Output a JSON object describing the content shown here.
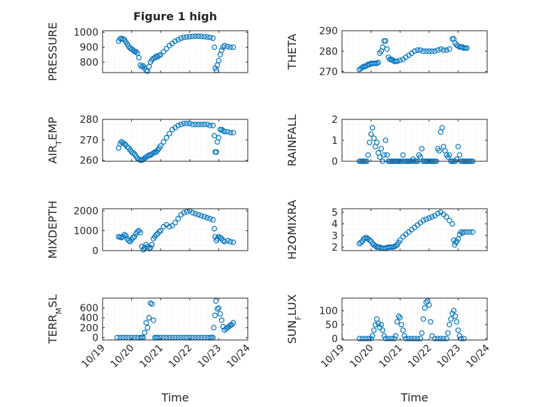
{
  "figure": {
    "title": "Figure 1 high"
  },
  "x_axis": {
    "label": "Time",
    "ticks": [
      "10/19",
      "10/20",
      "10/21",
      "10/22",
      "10/23",
      "10/24"
    ]
  },
  "colors": {
    "marker": "#0072bd",
    "axis": "#262626",
    "grid": "#dcdcdc"
  },
  "chart_data": [
    {
      "type": "scatter",
      "ylabel": "PRESSURE",
      "xlim": [
        0,
        5
      ],
      "ylim": [
        730,
        1010
      ],
      "yticks": [
        800,
        900,
        1000
      ],
      "x": [
        0.55,
        0.6,
        0.65,
        0.7,
        0.75,
        0.8,
        0.85,
        0.9,
        0.95,
        1.0,
        1.05,
        1.1,
        1.15,
        1.2,
        1.25,
        1.3,
        1.35,
        1.4,
        1.45,
        1.5,
        1.55,
        1.6,
        1.65,
        1.7,
        1.75,
        1.8,
        1.85,
        1.9,
        1.95,
        2.0,
        2.1,
        2.2,
        2.3,
        2.4,
        2.5,
        2.6,
        2.7,
        2.8,
        2.9,
        3.0,
        3.1,
        3.2,
        3.3,
        3.4,
        3.5,
        3.6,
        3.7,
        3.8,
        3.85,
        3.88,
        3.92,
        3.95,
        4.0,
        4.05,
        4.1,
        4.15,
        4.2,
        4.3,
        4.4,
        4.5
      ],
      "y": [
        940,
        955,
        958,
        955,
        950,
        935,
        920,
        905,
        893,
        888,
        880,
        870,
        870,
        860,
        830,
        780,
        770,
        775,
        760,
        745,
        740,
        770,
        800,
        815,
        825,
        830,
        840,
        835,
        845,
        850,
        870,
        890,
        910,
        925,
        940,
        950,
        960,
        965,
        968,
        970,
        972,
        973,
        973,
        972,
        970,
        968,
        965,
        960,
        900,
        760,
        745,
        780,
        810,
        850,
        880,
        900,
        910,
        905,
        900,
        900
      ]
    },
    {
      "type": "scatter",
      "ylabel": "THETA",
      "xlim": [
        0,
        5
      ],
      "ylim": [
        269.5,
        290
      ],
      "yticks": [
        270,
        280,
        290
      ],
      "x": [
        0.6,
        0.65,
        0.7,
        0.75,
        0.8,
        0.85,
        0.9,
        0.95,
        1.0,
        1.05,
        1.1,
        1.15,
        1.2,
        1.25,
        1.3,
        1.35,
        1.4,
        1.45,
        1.5,
        1.55,
        1.6,
        1.65,
        1.7,
        1.75,
        1.8,
        1.85,
        1.9,
        2.0,
        2.1,
        2.2,
        2.3,
        2.4,
        2.5,
        2.6,
        2.7,
        2.8,
        2.9,
        3.0,
        3.1,
        3.2,
        3.3,
        3.4,
        3.5,
        3.6,
        3.7,
        3.8,
        3.85,
        3.9,
        3.95,
        4.0,
        4.05,
        4.1,
        4.15,
        4.2,
        4.25,
        4.3
      ],
      "y": [
        271,
        271.5,
        272,
        272.5,
        272.5,
        273,
        273.5,
        273.5,
        274,
        274,
        274,
        274,
        274,
        274.5,
        279,
        280,
        282,
        285,
        285,
        281,
        277,
        276,
        276,
        275.5,
        275,
        275,
        275,
        275.5,
        276,
        277,
        278,
        279,
        280,
        280.5,
        280.5,
        280,
        280,
        280,
        280,
        280,
        280.5,
        281,
        280.5,
        280.5,
        281,
        286,
        286,
        284,
        283,
        282.5,
        282,
        282,
        282,
        281.5,
        281.5,
        281.5
      ]
    },
    {
      "type": "scatter",
      "ylabel": "AIR_TEMP",
      "xlim": [
        0,
        5
      ],
      "ylim": [
        259.5,
        280
      ],
      "yticks": [
        260,
        270,
        280
      ],
      "x": [
        0.55,
        0.6,
        0.65,
        0.7,
        0.75,
        0.8,
        0.85,
        0.9,
        0.95,
        1.0,
        1.05,
        1.1,
        1.15,
        1.2,
        1.25,
        1.3,
        1.35,
        1.4,
        1.45,
        1.5,
        1.55,
        1.6,
        1.65,
        1.7,
        1.75,
        1.8,
        1.85,
        1.9,
        1.95,
        2.0,
        2.1,
        2.2,
        2.3,
        2.4,
        2.5,
        2.6,
        2.7,
        2.8,
        2.9,
        3.0,
        3.1,
        3.2,
        3.3,
        3.4,
        3.5,
        3.6,
        3.7,
        3.8,
        3.85,
        3.88,
        3.92,
        3.95,
        4.0,
        4.05,
        4.1,
        4.15,
        4.2,
        4.3,
        4.4,
        4.5
      ],
      "y": [
        266,
        268,
        269,
        268.5,
        268,
        267.5,
        266.5,
        266,
        265,
        264,
        263.5,
        263,
        262,
        261,
        260.5,
        260,
        260,
        260.5,
        261,
        261.5,
        262,
        262.5,
        262.5,
        263,
        263.5,
        264,
        264,
        265,
        266,
        267,
        269,
        271,
        273,
        275,
        276,
        277,
        277.5,
        278,
        278,
        278,
        277.5,
        277.5,
        277.5,
        277.5,
        277.5,
        277.5,
        277,
        277,
        272,
        264,
        264,
        269,
        271,
        275,
        275,
        274.5,
        274,
        274,
        273.5,
        273.5
      ]
    },
    {
      "type": "scatter",
      "ylabel": "RAINFALL",
      "xlim": [
        0,
        5
      ],
      "ylim": [
        0,
        2
      ],
      "yticks": [
        0,
        1,
        2
      ],
      "x": [
        0.6,
        0.65,
        0.7,
        0.75,
        0.8,
        0.85,
        0.9,
        0.95,
        1.0,
        1.05,
        1.1,
        1.15,
        1.2,
        1.25,
        1.3,
        1.35,
        1.4,
        1.45,
        1.5,
        1.55,
        1.6,
        1.65,
        1.7,
        1.75,
        1.8,
        1.85,
        1.9,
        1.95,
        2.0,
        2.05,
        2.1,
        2.15,
        2.2,
        2.25,
        2.3,
        2.35,
        2.4,
        2.45,
        2.5,
        2.55,
        2.6,
        2.65,
        2.7,
        2.75,
        2.8,
        2.85,
        2.9,
        2.95,
        3.0,
        3.05,
        3.1,
        3.15,
        3.2,
        3.25,
        3.3,
        3.35,
        3.4,
        3.45,
        3.5,
        3.55,
        3.6,
        3.65,
        3.7,
        3.75,
        3.8,
        3.85,
        3.9,
        3.95,
        4.0,
        4.05,
        4.1,
        4.15,
        4.2,
        4.25,
        4.3,
        4.35,
        4.4,
        4.45,
        4.5
      ],
      "y": [
        0,
        0,
        0,
        0,
        0,
        0,
        0.3,
        0.9,
        1.3,
        1.6,
        1.1,
        0.7,
        0.9,
        0.4,
        0.2,
        0.6,
        0,
        0.3,
        1.0,
        0.3,
        0,
        0,
        0,
        0,
        0,
        0,
        0,
        0,
        0,
        0,
        0.3,
        0,
        0,
        0,
        0,
        0,
        0,
        0.1,
        0,
        0,
        0,
        0.3,
        0.2,
        0.6,
        0,
        0,
        0,
        0,
        0,
        0,
        0,
        0,
        0,
        0,
        0.6,
        0.5,
        1.4,
        1.6,
        0.7,
        0.5,
        0.3,
        0.2,
        0.3,
        0,
        0,
        0,
        0,
        0.1,
        0.7,
        0.3,
        0,
        0,
        0,
        0,
        0,
        0,
        0,
        0,
        0
      ]
    },
    {
      "type": "scatter",
      "ylabel": "MIXDEPTH",
      "xlim": [
        0,
        5
      ],
      "ylim": [
        0,
        2100
      ],
      "yticks": [
        0,
        1000,
        2000
      ],
      "x": [
        0.55,
        0.6,
        0.65,
        0.7,
        0.75,
        0.8,
        0.85,
        0.9,
        0.95,
        1.0,
        1.05,
        1.1,
        1.15,
        1.2,
        1.25,
        1.3,
        1.35,
        1.4,
        1.45,
        1.5,
        1.55,
        1.6,
        1.65,
        1.7,
        1.75,
        1.8,
        1.85,
        1.9,
        1.95,
        2.0,
        2.1,
        2.2,
        2.3,
        2.4,
        2.5,
        2.6,
        2.7,
        2.8,
        2.9,
        3.0,
        3.1,
        3.2,
        3.3,
        3.4,
        3.5,
        3.6,
        3.7,
        3.8,
        3.85,
        3.88,
        3.92,
        3.95,
        4.0,
        4.05,
        4.1,
        4.15,
        4.2,
        4.3,
        4.4,
        4.5
      ],
      "y": [
        700,
        680,
        650,
        700,
        800,
        750,
        600,
        500,
        450,
        550,
        650,
        700,
        850,
        950,
        1000,
        900,
        200,
        50,
        150,
        300,
        200,
        100,
        150,
        300,
        600,
        700,
        800,
        850,
        950,
        1000,
        1200,
        1300,
        1200,
        1250,
        1400,
        1600,
        1800,
        1900,
        1950,
        2000,
        1900,
        1850,
        1800,
        1750,
        1700,
        1650,
        1600,
        1550,
        1100,
        700,
        500,
        600,
        700,
        650,
        600,
        500,
        450,
        500,
        450,
        420
      ]
    },
    {
      "type": "scatter",
      "ylabel": "H2OMIXRA",
      "xlim": [
        0,
        5
      ],
      "ylim": [
        1.7,
        5.3
      ],
      "yticks": [
        2,
        3,
        4,
        5
      ],
      "x": [
        0.6,
        0.65,
        0.7,
        0.75,
        0.8,
        0.85,
        0.9,
        0.95,
        1.0,
        1.05,
        1.1,
        1.15,
        1.2,
        1.25,
        1.3,
        1.35,
        1.4,
        1.45,
        1.5,
        1.55,
        1.6,
        1.65,
        1.7,
        1.75,
        1.8,
        1.85,
        1.9,
        1.95,
        2.0,
        2.1,
        2.2,
        2.3,
        2.4,
        2.5,
        2.6,
        2.7,
        2.8,
        2.9,
        3.0,
        3.1,
        3.2,
        3.3,
        3.4,
        3.5,
        3.6,
        3.7,
        3.8,
        3.85,
        3.88,
        3.92,
        3.95,
        4.0,
        4.05,
        4.1,
        4.15,
        4.2,
        4.3,
        4.4,
        4.5
      ],
      "y": [
        2.3,
        2.4,
        2.5,
        2.7,
        2.8,
        2.8,
        2.7,
        2.6,
        2.5,
        2.3,
        2.2,
        2.1,
        2.0,
        2.0,
        2.0,
        1.9,
        1.9,
        1.9,
        1.9,
        1.95,
        2.0,
        2.0,
        2.0,
        2.0,
        2.05,
        2.1,
        2.2,
        2.4,
        2.6,
        2.9,
        3.1,
        3.3,
        3.5,
        3.7,
        3.9,
        4.1,
        4.3,
        4.4,
        4.5,
        4.6,
        4.7,
        4.9,
        5.0,
        4.8,
        4.6,
        4.3,
        4.0,
        2.6,
        2.2,
        2.4,
        2.5,
        2.7,
        3.1,
        3.3,
        3.2,
        3.3,
        3.3,
        3.3,
        3.3
      ]
    },
    {
      "type": "scatter",
      "ylabel": "TERR_MSL",
      "xlim": [
        0,
        5
      ],
      "ylim": [
        -50,
        800
      ],
      "yticks": [
        0,
        200,
        400,
        600
      ],
      "x": [
        0.5,
        0.6,
        0.7,
        0.8,
        0.9,
        1.0,
        1.1,
        1.2,
        1.3,
        1.35,
        1.4,
        1.45,
        1.5,
        1.55,
        1.6,
        1.65,
        1.7,
        1.75,
        1.8,
        1.85,
        1.9,
        2.0,
        2.1,
        2.2,
        2.3,
        2.4,
        2.5,
        2.6,
        2.7,
        2.8,
        2.9,
        3.0,
        3.1,
        3.2,
        3.3,
        3.4,
        3.5,
        3.6,
        3.7,
        3.75,
        3.8,
        3.83,
        3.87,
        3.9,
        3.95,
        4.0,
        4.05,
        4.1,
        4.15,
        4.2,
        4.25,
        4.3,
        4.35,
        4.4,
        4.45,
        4.5
      ],
      "y": [
        0,
        0,
        0,
        0,
        0,
        0,
        0,
        0,
        0,
        0,
        0,
        100,
        300,
        200,
        400,
        700,
        680,
        350,
        0,
        0,
        0,
        0,
        0,
        0,
        0,
        0,
        0,
        0,
        0,
        0,
        0,
        0,
        0,
        0,
        0,
        0,
        0,
        0,
        0,
        0,
        0,
        200,
        450,
        740,
        580,
        600,
        480,
        350,
        220,
        150,
        180,
        200,
        220,
        250,
        260,
        300
      ]
    },
    {
      "type": "scatter",
      "ylabel": "SUN_FLUX",
      "xlim": [
        0,
        5
      ],
      "ylim": [
        -5,
        145
      ],
      "yticks": [
        0,
        50,
        100
      ],
      "x": [
        0.6,
        0.7,
        0.8,
        0.9,
        1.0,
        1.05,
        1.1,
        1.15,
        1.2,
        1.25,
        1.3,
        1.35,
        1.4,
        1.45,
        1.5,
        1.6,
        1.7,
        1.8,
        1.85,
        1.9,
        1.95,
        2.0,
        2.05,
        2.1,
        2.15,
        2.2,
        2.3,
        2.4,
        2.5,
        2.6,
        2.7,
        2.75,
        2.8,
        2.85,
        2.9,
        2.95,
        3.0,
        3.05,
        3.1,
        3.2,
        3.3,
        3.4,
        3.5,
        3.6,
        3.65,
        3.7,
        3.75,
        3.8,
        3.85,
        3.9,
        3.95,
        4.0,
        4.05,
        4.1,
        4.2
      ],
      "y": [
        0,
        0,
        0,
        0,
        0,
        10,
        30,
        50,
        70,
        55,
        40,
        50,
        30,
        10,
        0,
        0,
        0,
        0,
        10,
        60,
        80,
        75,
        50,
        30,
        10,
        0,
        0,
        0,
        0,
        0,
        0,
        20,
        70,
        110,
        130,
        135,
        120,
        60,
        10,
        0,
        0,
        0,
        0,
        0,
        20,
        50,
        70,
        90,
        100,
        80,
        60,
        30,
        10,
        0,
        0
      ]
    }
  ]
}
